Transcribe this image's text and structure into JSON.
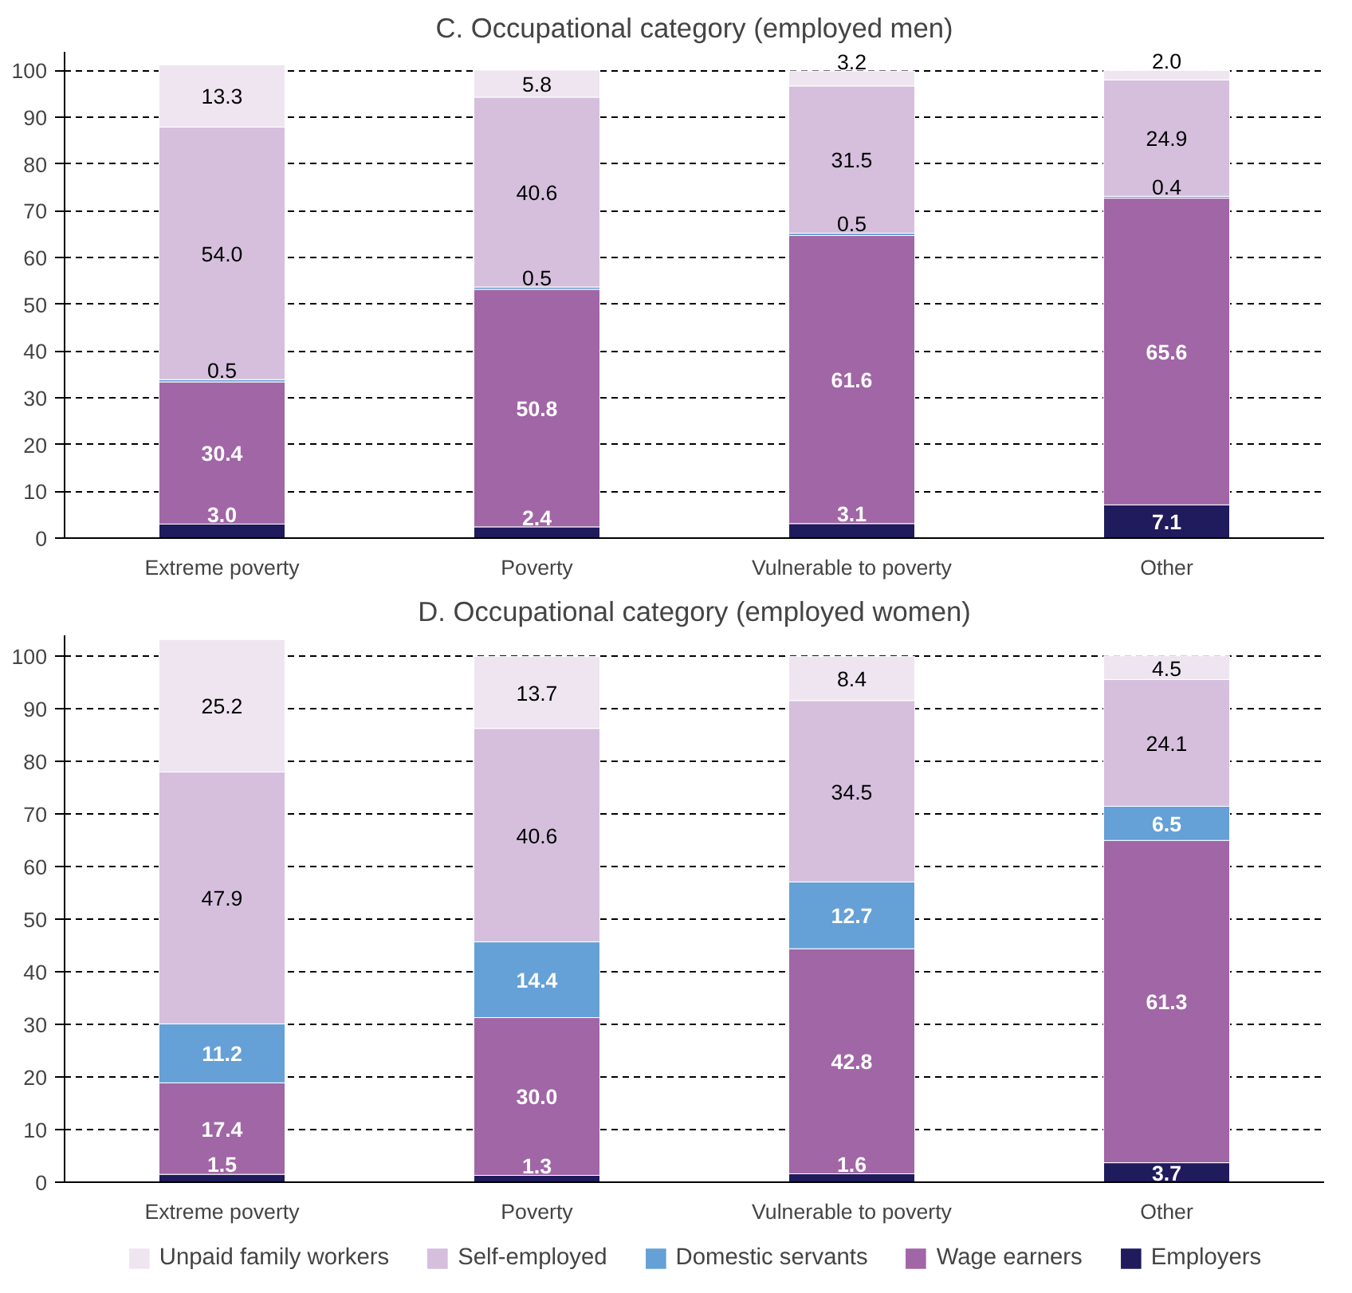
{
  "chart_data": [
    {
      "type": "bar",
      "title": "C. Occupational category (employed men)",
      "stacked": true,
      "grid": "y",
      "legend": false,
      "categories": [
        "Extreme poverty",
        "Poverty",
        "Vulnerable to poverty",
        "Other"
      ],
      "ylim": [
        0,
        104
      ],
      "yticks": [
        0,
        10,
        20,
        30,
        40,
        50,
        60,
        70,
        80,
        90,
        100
      ],
      "series": [
        {
          "color": "#1f1b5c",
          "values": [
            3.0,
            2.4,
            3.1,
            7.1
          ],
          "value_labels": [
            "3.0",
            "2.4",
            "3.1",
            "7.1"
          ]
        },
        {
          "color": "#a066a6",
          "values": [
            30.4,
            50.8,
            61.6,
            65.6
          ],
          "value_labels": [
            "30.4",
            "50.8",
            "61.6",
            "65.6"
          ]
        },
        {
          "color": "#65a0d6",
          "values": [
            0.5,
            0.5,
            0.5,
            0.4
          ],
          "value_labels": [
            "0.5",
            "0.5",
            "0.5",
            "0.4"
          ]
        },
        {
          "color": "#d5bfdd",
          "values": [
            54.0,
            40.6,
            31.5,
            24.9
          ],
          "value_labels": [
            "54.0",
            "40.6",
            "31.5",
            "24.9"
          ]
        },
        {
          "color": "#eee5f1",
          "values": [
            13.3,
            5.8,
            3.2,
            2.0
          ],
          "value_labels": [
            "13.3",
            "5.8",
            "3.2",
            "2.0"
          ]
        }
      ]
    },
    {
      "type": "bar",
      "title": "D. Occupational category (employed women)",
      "stacked": true,
      "grid": "y",
      "legend": "bottom",
      "categories": [
        "Extreme poverty",
        "Poverty",
        "Vulnerable to poverty",
        "Other"
      ],
      "ylim": [
        0,
        104
      ],
      "yticks": [
        0,
        10,
        20,
        30,
        40,
        50,
        60,
        70,
        80,
        90,
        100
      ],
      "series": [
        {
          "name": "Employers",
          "color": "#1f1b5c",
          "values": [
            1.5,
            1.3,
            1.6,
            3.7
          ],
          "value_labels": [
            "1.5",
            "1.3",
            "1.6",
            "3.7"
          ]
        },
        {
          "name": "Wage earners",
          "color": "#a066a6",
          "values": [
            17.4,
            30.0,
            42.8,
            61.3
          ],
          "value_labels": [
            "17.4",
            "30.0",
            "42.8",
            "61.3"
          ]
        },
        {
          "name": "Domestic servants",
          "color": "#65a0d6",
          "values": [
            11.2,
            14.4,
            12.7,
            6.5
          ],
          "value_labels": [
            "11.2",
            "14.4",
            "12.7",
            "6.5"
          ]
        },
        {
          "name": "Self-employed",
          "color": "#d5bfdd",
          "values": [
            47.9,
            40.6,
            34.5,
            24.1
          ],
          "value_labels": [
            "47.9",
            "40.6",
            "34.5",
            "24.1"
          ]
        },
        {
          "name": "Unpaid family workers",
          "color": "#eee5f1",
          "values": [
            25.2,
            13.7,
            8.4,
            4.5
          ],
          "value_labels": [
            "25.2",
            "13.7",
            "8.4",
            "4.5"
          ]
        }
      ]
    }
  ]
}
